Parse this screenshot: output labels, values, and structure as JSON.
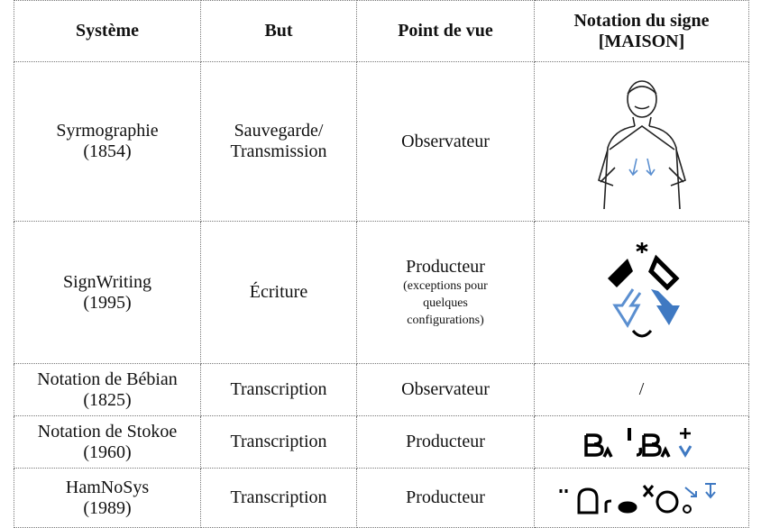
{
  "table": {
    "header": [
      [
        "Système"
      ],
      [
        "But"
      ],
      [
        "Point de vue"
      ],
      [
        "Notation du signe",
        "[MAISON]"
      ]
    ],
    "rows": [
      {
        "system": [
          "Syrmographie",
          "(1854)"
        ],
        "goal": [
          "Sauvegarde/",
          "Transmission"
        ],
        "view": [
          "Observateur"
        ]
      },
      {
        "system": [
          "SignWriting",
          "(1995)"
        ],
        "goal": [
          "Écriture"
        ],
        "view": [
          "Producteur"
        ],
        "view_note": [
          "(exceptions pour",
          "quelques",
          "configurations)"
        ]
      },
      {
        "system": [
          "Notation de Bébian",
          "(1825)"
        ],
        "goal": [
          "Transcription"
        ],
        "view": [
          "Observateur"
        ],
        "notation": "/"
      },
      {
        "system": [
          "Notation de Stokoe",
          "(1960)"
        ],
        "goal": [
          "Transcription"
        ],
        "view": [
          "Producteur"
        ]
      },
      {
        "system": [
          "HamNoSys",
          "(1989)"
        ],
        "goal": [
          "Transcription"
        ],
        "view": [
          "Producteur"
        ]
      }
    ]
  }
}
